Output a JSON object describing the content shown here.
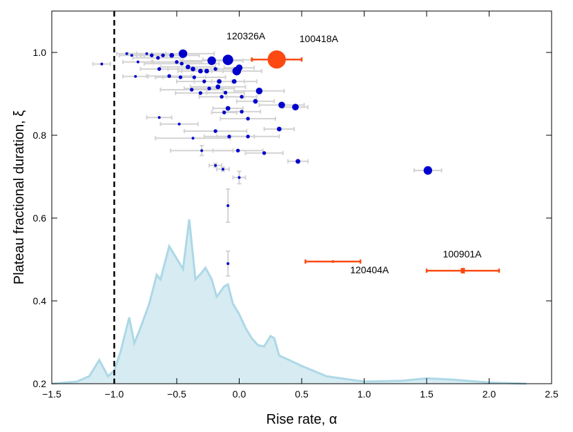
{
  "chart_data": {
    "type": "scatter",
    "xlabel": "Rise rate, α",
    "ylabel": "Plateau fractional duration, ξ",
    "xlim": [
      -1.5,
      2.5
    ],
    "ylim": [
      0.2,
      1.1
    ],
    "xticks": [
      {
        "value": -1.5,
        "label": "−1.5"
      },
      {
        "value": -1.0,
        "label": "−1.0"
      },
      {
        "value": -0.5,
        "label": "−0.5"
      },
      {
        "value": 0,
        "label": "0.0"
      },
      0.5,
      {
        "value": 1,
        "label": "1.0"
      },
      1.5,
      {
        "value": 2,
        "label": "2.0"
      },
      2.5
    ],
    "yticks": [
      0.2,
      0.4,
      0.6,
      0.8,
      {
        "value": 1,
        "label": "1.0"
      }
    ],
    "vline": -1.0,
    "vline_color": "#000000",
    "error_color": "#d3d3d3",
    "density": {
      "color": "#add8e6",
      "x": [
        -1.5,
        -1.3,
        -1.2,
        -1.12,
        -1.05,
        -1.0,
        -0.95,
        -0.88,
        -0.84,
        -0.8,
        -0.72,
        -0.66,
        -0.63,
        -0.56,
        -0.5,
        -0.45,
        -0.4,
        -0.35,
        -0.3,
        -0.27,
        -0.22,
        -0.18,
        -0.12,
        -0.09,
        -0.05,
        0.0,
        0.05,
        0.1,
        0.15,
        0.2,
        0.25,
        0.28,
        0.32,
        0.4,
        0.5,
        0.7,
        1.0,
        1.3,
        1.5,
        1.7,
        2.0,
        2.3
      ],
      "values": [
        0.2,
        0.205,
        0.218,
        0.257,
        0.218,
        0.232,
        0.277,
        0.36,
        0.298,
        0.327,
        0.393,
        0.463,
        0.452,
        0.532,
        0.502,
        0.477,
        0.597,
        0.452,
        0.468,
        0.48,
        0.452,
        0.41,
        0.435,
        0.44,
        0.393,
        0.368,
        0.335,
        0.31,
        0.293,
        0.29,
        0.315,
        0.31,
        0.268,
        0.257,
        0.243,
        0.218,
        0.205,
        0.207,
        0.213,
        0.21,
        0.203,
        0.2
      ]
    },
    "series": [
      {
        "color": "#0000cc",
        "x": [
          -1.1,
          -0.9,
          -0.86,
          -0.81,
          -0.83,
          -0.74,
          -0.7,
          -0.65,
          -0.61,
          -0.54,
          -0.5,
          -0.45,
          -0.46,
          -0.41,
          -0.37,
          -0.31,
          -0.26,
          -0.22,
          -0.19,
          -0.09,
          -0.02,
          0.0,
          -0.56,
          -0.64,
          -0.47,
          -0.36,
          -0.28,
          -0.16,
          -0.04,
          -0.38,
          -0.24,
          -0.17,
          -0.11,
          -0.31,
          0.16,
          0.13,
          0.02,
          -0.14,
          0.34,
          0.45,
          -0.09,
          0.02,
          -0.12,
          -0.64,
          -0.48,
          0.07,
          -0.19,
          0.32,
          -0.37,
          -0.08,
          0.07,
          -0.3,
          -0.01,
          0.2,
          0.47,
          -0.19,
          -0.13,
          0.0,
          1.51,
          -0.09,
          -0.09
        ],
        "values": [
          0.972,
          0.997,
          0.993,
          0.977,
          0.942,
          0.997,
          0.993,
          0.987,
          0.993,
          0.993,
          0.977,
          0.997,
          0.973,
          0.965,
          0.96,
          0.955,
          0.955,
          0.98,
          0.96,
          0.982,
          0.955,
          0.963,
          0.943,
          0.96,
          0.94,
          0.94,
          0.93,
          0.93,
          0.93,
          0.91,
          0.913,
          0.917,
          0.903,
          0.902,
          0.907,
          0.882,
          0.893,
          0.893,
          0.873,
          0.868,
          0.865,
          0.857,
          0.855,
          0.843,
          0.827,
          0.84,
          0.81,
          0.815,
          0.793,
          0.797,
          0.797,
          0.763,
          0.763,
          0.757,
          0.737,
          0.727,
          0.718,
          0.698,
          0.715,
          0.63,
          0.49
        ],
        "xerr": [
          0.07,
          0.08,
          0.1,
          0.12,
          0.1,
          0.15,
          0.12,
          0.2,
          0.18,
          0.22,
          0.2,
          0.25,
          0.3,
          0.22,
          0.2,
          0.18,
          0.2,
          0.25,
          0.15,
          0.2,
          0.2,
          0.12,
          0.18,
          0.15,
          0.2,
          0.25,
          0.22,
          0.2,
          0.18,
          0.25,
          0.2,
          0.22,
          0.15,
          0.2,
          0.2,
          0.15,
          0.12,
          0.18,
          0.18,
          0.1,
          0.12,
          0.15,
          0.1,
          0.1,
          0.15,
          0.22,
          0.25,
          0.12,
          0.3,
          0.2,
          0.25,
          0.25,
          0.2,
          0.15,
          0.08,
          0.05,
          0.05,
          0.05,
          0.11,
          0,
          0
        ],
        "yerr": [
          0,
          0,
          0,
          0,
          0,
          0,
          0,
          0,
          0,
          0,
          0,
          0,
          0,
          0,
          0,
          0,
          0,
          0,
          0,
          0,
          0,
          0,
          0,
          0,
          0,
          0,
          0,
          0,
          0,
          0,
          0,
          0,
          0,
          0,
          0,
          0,
          0,
          0,
          0,
          0,
          0,
          0,
          0,
          0,
          0,
          0,
          0,
          0,
          0,
          0,
          0,
          0.012,
          0,
          0,
          0,
          0.005,
          0.005,
          0.015,
          0,
          0.04,
          0.03
        ],
        "sizes": [
          1,
          1,
          1,
          1,
          1,
          1,
          1.5,
          1.5,
          1.5,
          2,
          1.5,
          4,
          1.5,
          2,
          2,
          2,
          2,
          4,
          1.5,
          5,
          4,
          3,
          1.5,
          1.5,
          1.5,
          1.5,
          1.5,
          2,
          2,
          1.5,
          1.5,
          2,
          1.5,
          1.5,
          3,
          2,
          1.5,
          1.5,
          3,
          3,
          2,
          1.5,
          1.5,
          1,
          1,
          1.5,
          1.5,
          2,
          1,
          1.5,
          1.5,
          1,
          1.5,
          1.5,
          2,
          1,
          1,
          1,
          4,
          1,
          1
        ],
        "labels": [
          null,
          null,
          null,
          null,
          null,
          null,
          null,
          null,
          null,
          null,
          null,
          null,
          null,
          null,
          null,
          null,
          null,
          null,
          null,
          "120326A",
          null,
          null,
          null,
          null,
          null,
          null,
          null,
          null,
          null,
          null,
          null,
          null,
          null,
          null,
          null,
          null,
          null,
          null,
          null,
          null,
          null,
          null,
          null,
          null,
          null,
          null,
          null,
          null,
          null,
          null,
          null,
          null,
          null,
          null,
          null,
          null,
          null,
          null,
          null,
          null,
          null
        ]
      },
      {
        "color": "#fc4a12",
        "x": [
          0.3,
          0.75,
          1.79
        ],
        "values": [
          0.983,
          0.495,
          0.473
        ],
        "xerr": [
          0.2,
          0.22,
          0.29
        ],
        "yerr": [
          0,
          0,
          0.005
        ],
        "sizes": [
          9,
          1,
          2
        ],
        "labels": [
          "100418A",
          "120404A",
          "100901A"
        ]
      }
    ]
  }
}
